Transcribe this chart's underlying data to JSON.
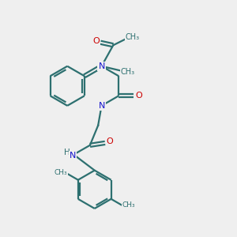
{
  "bg_color": "#efefef",
  "bond_color": "#2d7070",
  "n_color": "#1414cc",
  "o_color": "#cc0000",
  "lw": 1.6,
  "figsize": [
    3.0,
    3.0
  ],
  "dpi": 100,
  "xlim": [
    0,
    10
  ],
  "ylim": [
    0,
    10
  ]
}
